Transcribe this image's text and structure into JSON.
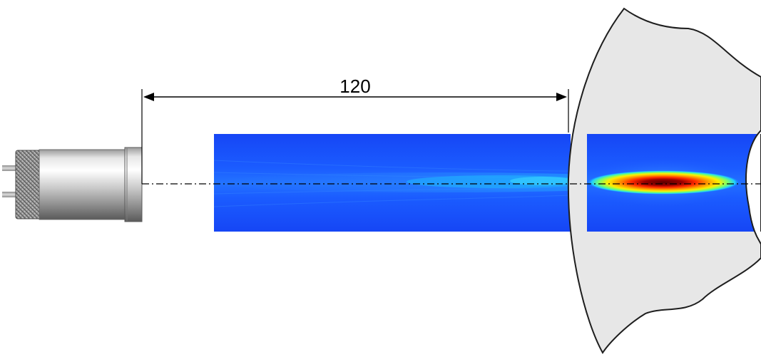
{
  "dimension": {
    "value_label": "120"
  },
  "colors": {
    "field_low": "#1a4cff",
    "field_mid": "#21a5ff",
    "field_high_yellow": "#ffe800",
    "field_core": "#8a0000",
    "tissue_fill": "#e7e7e7",
    "tissue_stroke": "#1e1e1e",
    "axis_line": "#000000"
  },
  "icons": {
    "probe": "ultrasound-transducer-icon"
  }
}
